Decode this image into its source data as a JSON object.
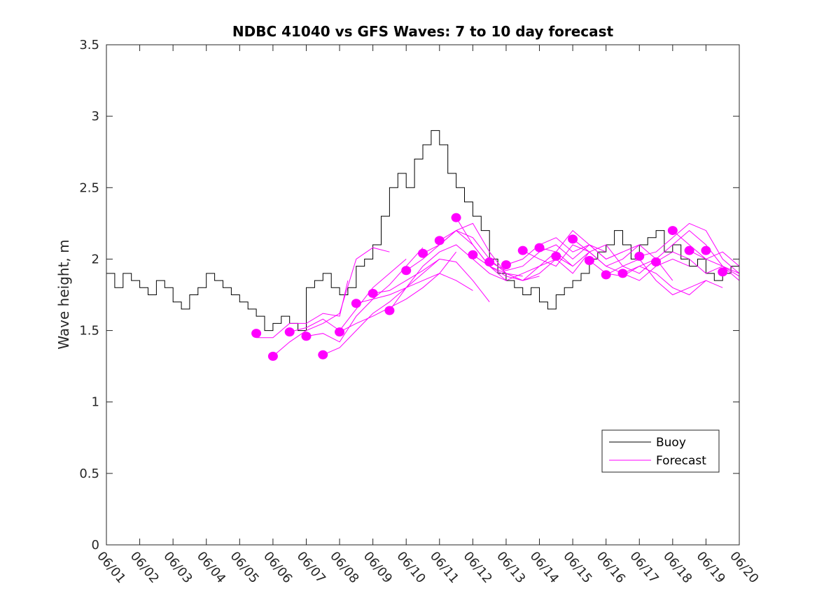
{
  "chart_data": {
    "type": "line",
    "title": "NDBC 41040 vs GFS Waves: 7 to 10 day forecast",
    "xlabel": "",
    "ylabel": "Wave height, m",
    "x_ticks": [
      "06/01",
      "06/02",
      "06/03",
      "06/04",
      "06/05",
      "06/06",
      "06/07",
      "06/08",
      "06/09",
      "06/10",
      "06/11",
      "06/12",
      "06/13",
      "06/14",
      "06/15",
      "06/16",
      "06/17",
      "06/18",
      "06/19",
      "06/20"
    ],
    "y_ticks": [
      "0",
      "0.5",
      "1",
      "1.5",
      "2",
      "2.5",
      "3",
      "3.5"
    ],
    "xlim": [
      "06/01",
      "06/20"
    ],
    "ylim": [
      0,
      3.5
    ],
    "grid": false,
    "legend_position": "bottom-right",
    "colors": {
      "buoy": "#000000",
      "forecast": "#ff00ff"
    },
    "series": [
      {
        "name": "Buoy",
        "style": "line",
        "x": [
          "06/01 00:00",
          "06/01 06:00",
          "06/01 12:00",
          "06/01 18:00",
          "06/02 00:00",
          "06/02 06:00",
          "06/02 12:00",
          "06/02 18:00",
          "06/03 00:00",
          "06/03 06:00",
          "06/03 12:00",
          "06/03 18:00",
          "06/04 00:00",
          "06/04 06:00",
          "06/04 12:00",
          "06/04 18:00",
          "06/05 00:00",
          "06/05 06:00",
          "06/05 12:00",
          "06/05 18:00",
          "06/06 00:00",
          "06/06 06:00",
          "06/06 12:00",
          "06/06 18:00",
          "06/07 00:00",
          "06/07 06:00",
          "06/07 12:00",
          "06/07 18:00",
          "06/08 00:00",
          "06/08 06:00",
          "06/08 12:00",
          "06/08 18:00",
          "06/09 00:00",
          "06/09 06:00",
          "06/09 12:00",
          "06/09 18:00",
          "06/10 00:00",
          "06/10 06:00",
          "06/10 12:00",
          "06/10 18:00",
          "06/11 00:00",
          "06/11 06:00",
          "06/11 12:00",
          "06/11 18:00",
          "06/12 00:00",
          "06/12 06:00",
          "06/12 12:00",
          "06/12 18:00",
          "06/13 00:00",
          "06/13 06:00",
          "06/13 12:00",
          "06/13 18:00",
          "06/14 00:00",
          "06/14 06:00",
          "06/14 12:00",
          "06/14 18:00",
          "06/15 00:00",
          "06/15 06:00",
          "06/15 12:00",
          "06/15 18:00",
          "06/16 00:00",
          "06/16 06:00",
          "06/16 12:00",
          "06/16 18:00",
          "06/17 00:00",
          "06/17 06:00",
          "06/17 12:00",
          "06/17 18:00",
          "06/18 00:00",
          "06/18 06:00",
          "06/18 12:00",
          "06/18 18:00",
          "06/19 00:00",
          "06/19 06:00",
          "06/19 12:00",
          "06/19 18:00",
          "06/20 00:00"
        ],
        "y": [
          1.9,
          1.8,
          1.9,
          1.85,
          1.8,
          1.75,
          1.85,
          1.8,
          1.7,
          1.65,
          1.75,
          1.8,
          1.9,
          1.85,
          1.8,
          1.75,
          1.7,
          1.65,
          1.6,
          1.5,
          1.55,
          1.6,
          1.55,
          1.5,
          1.8,
          1.85,
          1.9,
          1.8,
          1.75,
          1.8,
          1.95,
          2.0,
          2.1,
          2.3,
          2.5,
          2.6,
          2.5,
          2.7,
          2.8,
          2.9,
          2.8,
          2.6,
          2.5,
          2.4,
          2.3,
          2.2,
          2.0,
          1.9,
          1.85,
          1.8,
          1.75,
          1.8,
          1.7,
          1.65,
          1.75,
          1.8,
          1.85,
          1.9,
          2.0,
          2.05,
          2.1,
          2.2,
          2.1,
          2.0,
          2.1,
          2.15,
          2.2,
          2.05,
          2.1,
          2.0,
          1.95,
          2.0,
          1.9,
          1.85,
          1.9,
          1.95,
          1.9
        ]
      },
      {
        "name": "Forecast",
        "style": "markers",
        "x": [
          "06/05 12:00",
          "06/06 00:00",
          "06/06 12:00",
          "06/07 00:00",
          "06/07 12:00",
          "06/08 00:00",
          "06/08 12:00",
          "06/09 00:00",
          "06/09 12:00",
          "06/10 00:00",
          "06/10 12:00",
          "06/11 00:00",
          "06/11 12:00",
          "06/12 00:00",
          "06/12 12:00",
          "06/13 00:00",
          "06/13 12:00",
          "06/14 00:00",
          "06/14 12:00",
          "06/15 00:00",
          "06/15 12:00",
          "06/16 00:00",
          "06/16 12:00",
          "06/17 00:00",
          "06/17 12:00",
          "06/18 00:00",
          "06/18 12:00",
          "06/19 00:00",
          "06/19 12:00"
        ],
        "y": [
          1.48,
          1.32,
          1.49,
          1.46,
          1.33,
          1.49,
          1.69,
          1.76,
          1.64,
          1.92,
          2.04,
          2.13,
          2.29,
          2.03,
          1.98,
          1.96,
          2.06,
          2.08,
          2.02,
          2.14,
          1.99,
          1.89,
          1.9,
          2.02,
          1.98,
          2.2,
          2.06,
          2.06,
          1.91
        ]
      },
      {
        "name": "",
        "style": "line",
        "x": [
          "06/05 12:00",
          "06/06 00:00",
          "06/06 12:00",
          "06/07 00:00",
          "06/07 12:00",
          "06/08 00:00",
          "06/08 06:00"
        ],
        "y": [
          1.45,
          1.45,
          1.55,
          1.55,
          1.62,
          1.6,
          1.85
        ]
      },
      {
        "name": "",
        "style": "line",
        "x": [
          "06/06 00:00",
          "06/06 12:00",
          "06/07 00:00",
          "06/07 12:00",
          "06/08 00:00",
          "06/08 12:00",
          "06/09 00:00",
          "06/09 12:00"
        ],
        "y": [
          1.32,
          1.42,
          1.5,
          1.55,
          1.62,
          2.0,
          2.08,
          2.05
        ]
      },
      {
        "name": "",
        "style": "line",
        "x": [
          "06/06 12:00",
          "06/07 00:00",
          "06/07 12:00",
          "06/08 00:00",
          "06/08 12:00",
          "06/09 00:00",
          "06/09 12:00",
          "06/10 00:00"
        ],
        "y": [
          1.49,
          1.52,
          1.58,
          1.5,
          1.65,
          1.8,
          1.9,
          2.0
        ]
      },
      {
        "name": "",
        "style": "line",
        "x": [
          "06/07 00:00",
          "06/07 12:00",
          "06/08 00:00",
          "06/08 12:00",
          "06/09 00:00",
          "06/09 12:00",
          "06/10 00:00",
          "06/10 12:00"
        ],
        "y": [
          1.46,
          1.48,
          1.42,
          1.6,
          1.72,
          1.82,
          1.95,
          2.08
        ]
      },
      {
        "name": "",
        "style": "line",
        "x": [
          "06/07 12:00",
          "06/08 00:00",
          "06/08 12:00",
          "06/09 00:00",
          "06/09 12:00",
          "06/10 00:00",
          "06/10 12:00",
          "06/11 00:00"
        ],
        "y": [
          1.33,
          1.38,
          1.5,
          1.62,
          1.7,
          1.8,
          1.9,
          2.0
        ]
      },
      {
        "name": "",
        "style": "line",
        "x": [
          "06/08 00:00",
          "06/08 12:00",
          "06/09 00:00",
          "06/09 12:00",
          "06/10 00:00",
          "06/10 12:00",
          "06/11 00:00",
          "06/11 12:00"
        ],
        "y": [
          1.49,
          1.55,
          1.6,
          1.66,
          1.72,
          1.8,
          1.9,
          2.05
        ]
      },
      {
        "name": "",
        "style": "line",
        "x": [
          "06/08 12:00",
          "06/09 00:00",
          "06/09 12:00",
          "06/10 00:00",
          "06/10 12:00",
          "06/11 00:00",
          "06/11 12:00",
          "06/12 00:00"
        ],
        "y": [
          1.69,
          1.72,
          1.75,
          1.8,
          1.85,
          1.9,
          1.85,
          1.78
        ]
      },
      {
        "name": "",
        "style": "line",
        "x": [
          "06/09 00:00",
          "06/09 12:00",
          "06/10 00:00",
          "06/10 12:00",
          "06/11 00:00",
          "06/11 12:00",
          "06/12 00:00",
          "06/12 12:00"
        ],
        "y": [
          1.76,
          1.78,
          1.85,
          1.92,
          2.0,
          1.98,
          1.85,
          1.7
        ]
      },
      {
        "name": "",
        "style": "line",
        "x": [
          "06/09 12:00",
          "06/10 00:00",
          "06/10 12:00",
          "06/11 00:00",
          "06/11 12:00",
          "06/12 00:00",
          "06/12 12:00",
          "06/13 00:00"
        ],
        "y": [
          1.64,
          1.8,
          1.95,
          2.05,
          2.1,
          2.0,
          1.9,
          1.85
        ]
      },
      {
        "name": "",
        "style": "line",
        "x": [
          "06/10 00:00",
          "06/10 12:00",
          "06/11 00:00",
          "06/11 12:00",
          "06/12 00:00",
          "06/12 12:00",
          "06/13 00:00",
          "06/13 12:00"
        ],
        "y": [
          1.92,
          2.0,
          2.1,
          2.2,
          2.25,
          2.05,
          1.9,
          1.88
        ]
      },
      {
        "name": "",
        "style": "line",
        "x": [
          "06/10 12:00",
          "06/11 00:00",
          "06/11 12:00",
          "06/12 00:00",
          "06/12 12:00",
          "06/13 00:00",
          "06/13 12:00",
          "06/14 00:00"
        ],
        "y": [
          2.04,
          2.1,
          2.2,
          2.15,
          2.0,
          1.9,
          1.85,
          1.88
        ]
      },
      {
        "name": "",
        "style": "line",
        "x": [
          "06/11 00:00",
          "06/11 12:00",
          "06/12 00:00",
          "06/12 12:00",
          "06/13 00:00",
          "06/13 12:00",
          "06/14 00:00",
          "06/14 12:00"
        ],
        "y": [
          2.13,
          2.2,
          2.1,
          1.95,
          1.85,
          1.9,
          1.95,
          2.0
        ]
      },
      {
        "name": "",
        "style": "line",
        "x": [
          "06/11 12:00",
          "06/12 00:00",
          "06/12 12:00",
          "06/13 00:00",
          "06/13 12:00",
          "06/14 00:00",
          "06/14 12:00",
          "06/15 00:00"
        ],
        "y": [
          2.29,
          2.1,
          1.95,
          1.9,
          1.85,
          1.95,
          2.05,
          1.95
        ]
      },
      {
        "name": "",
        "style": "line",
        "x": [
          "06/12 00:00",
          "06/12 12:00",
          "06/13 00:00",
          "06/13 12:00",
          "06/14 00:00",
          "06/14 12:00",
          "06/15 00:00",
          "06/15 12:00"
        ],
        "y": [
          2.03,
          1.95,
          1.88,
          1.85,
          1.9,
          2.0,
          1.9,
          2.05
        ]
      },
      {
        "name": "",
        "style": "line",
        "x": [
          "06/12 12:00",
          "06/13 00:00",
          "06/13 12:00",
          "06/14 00:00",
          "06/14 12:00",
          "06/15 00:00",
          "06/15 12:00",
          "06/16 00:00"
        ],
        "y": [
          1.98,
          1.92,
          1.95,
          2.05,
          2.1,
          2.0,
          2.1,
          2.05
        ]
      },
      {
        "name": "",
        "style": "line",
        "x": [
          "06/13 00:00",
          "06/13 12:00",
          "06/14 00:00",
          "06/14 12:00",
          "06/15 00:00",
          "06/15 12:00",
          "06/16 00:00",
          "06/16 12:00"
        ],
        "y": [
          1.96,
          2.0,
          2.1,
          2.15,
          2.05,
          2.1,
          2.0,
          2.05
        ]
      },
      {
        "name": "",
        "style": "line",
        "x": [
          "06/13 12:00",
          "06/14 00:00",
          "06/14 12:00",
          "06/15 00:00",
          "06/15 12:00",
          "06/16 00:00",
          "06/16 12:00",
          "06/17 00:00"
        ],
        "y": [
          2.06,
          2.0,
          1.95,
          2.1,
          2.05,
          1.95,
          2.0,
          2.1
        ]
      },
      {
        "name": "",
        "style": "line",
        "x": [
          "06/14 00:00",
          "06/14 12:00",
          "06/15 00:00",
          "06/15 12:00",
          "06/16 00:00",
          "06/16 12:00",
          "06/17 00:00",
          "06/17 12:00"
        ],
        "y": [
          2.08,
          2.05,
          2.2,
          2.1,
          2.0,
          2.05,
          2.1,
          2.0
        ]
      },
      {
        "name": "",
        "style": "line",
        "x": [
          "06/14 12:00",
          "06/15 00:00",
          "06/15 12:00",
          "06/16 00:00",
          "06/16 12:00",
          "06/17 00:00",
          "06/17 12:00",
          "06/18 00:00"
        ],
        "y": [
          2.02,
          1.95,
          2.05,
          2.1,
          1.95,
          1.9,
          2.0,
          1.85
        ]
      },
      {
        "name": "",
        "style": "line",
        "x": [
          "06/15 00:00",
          "06/15 12:00",
          "06/16 00:00",
          "06/16 12:00",
          "06/17 00:00",
          "06/17 12:00",
          "06/18 00:00",
          "06/18 12:00"
        ],
        "y": [
          2.14,
          2.05,
          1.95,
          1.9,
          1.85,
          1.95,
          2.0,
          1.95
        ]
      },
      {
        "name": "",
        "style": "line",
        "x": [
          "06/15 12:00",
          "06/16 00:00",
          "06/16 12:00",
          "06/17 00:00",
          "06/17 12:00",
          "06/18 00:00",
          "06/18 12:00",
          "06/19 00:00"
        ],
        "y": [
          1.99,
          1.9,
          1.88,
          1.95,
          1.9,
          1.8,
          1.75,
          1.85
        ]
      },
      {
        "name": "",
        "style": "line",
        "x": [
          "06/16 00:00",
          "06/16 12:00",
          "06/17 00:00",
          "06/17 12:00",
          "06/18 00:00",
          "06/18 12:00",
          "06/19 00:00",
          "06/19 12:00"
        ],
        "y": [
          1.89,
          1.95,
          2.0,
          1.85,
          1.75,
          1.8,
          1.85,
          1.8
        ]
      },
      {
        "name": "",
        "style": "line",
        "x": [
          "06/16 12:00",
          "06/17 00:00",
          "06/17 12:00",
          "06/18 00:00",
          "06/18 12:00",
          "06/19 00:00",
          "06/19 12:00",
          "06/20 00:00"
        ],
        "y": [
          1.9,
          1.95,
          2.0,
          2.1,
          2.2,
          2.1,
          1.95,
          1.85
        ]
      },
      {
        "name": "",
        "style": "line",
        "x": [
          "06/17 00:00",
          "06/17 12:00",
          "06/18 00:00",
          "06/18 12:00",
          "06/19 00:00",
          "06/19 12:00",
          "06/20 00:00"
        ],
        "y": [
          2.02,
          2.05,
          2.15,
          2.25,
          2.2,
          2.0,
          1.9
        ]
      },
      {
        "name": "",
        "style": "line",
        "x": [
          "06/17 12:00",
          "06/18 00:00",
          "06/18 12:00",
          "06/19 00:00",
          "06/19 12:00",
          "06/20 00:00"
        ],
        "y": [
          1.98,
          2.05,
          2.0,
          1.9,
          1.95,
          1.88
        ]
      },
      {
        "name": "",
        "style": "line",
        "x": [
          "06/18 00:00",
          "06/18 12:00",
          "06/19 00:00",
          "06/19 12:00",
          "06/20 00:00"
        ],
        "y": [
          2.2,
          2.1,
          2.0,
          2.05,
          1.95
        ]
      },
      {
        "name": "",
        "style": "line",
        "x": [
          "06/18 12:00",
          "06/19 00:00",
          "06/19 12:00",
          "06/20 00:00"
        ],
        "y": [
          2.06,
          2.0,
          1.95,
          1.9
        ]
      }
    ],
    "legend": [
      {
        "label": "Buoy",
        "color": "#000000"
      },
      {
        "label": "Forecast",
        "color": "#ff00ff"
      }
    ]
  }
}
